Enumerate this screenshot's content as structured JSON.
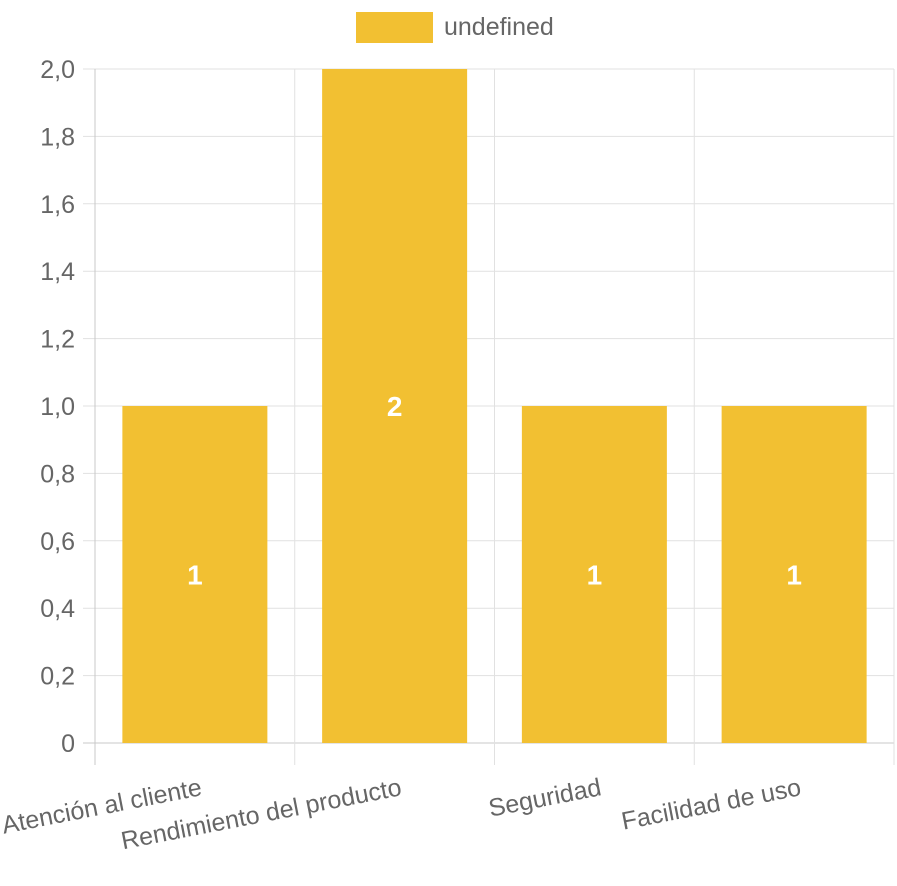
{
  "chart_data": {
    "type": "bar",
    "categories": [
      "Atención al cliente",
      "Rendimiento del producto",
      "Seguridad",
      "Facilidad de uso"
    ],
    "series": [
      {
        "name": "undefined",
        "values": [
          1,
          2,
          1,
          1
        ],
        "color": "#f2c032"
      }
    ],
    "data_labels": [
      "1",
      "2",
      "1",
      "1"
    ],
    "ylim": [
      0,
      2
    ],
    "y_ticks": [
      0,
      0.2,
      0.4,
      0.6,
      0.8,
      1.0,
      1.2,
      1.4,
      1.6,
      1.8,
      2.0
    ],
    "y_tick_labels": [
      "0",
      "0,2",
      "0,4",
      "0,6",
      "0,8",
      "1,0",
      "1,2",
      "1,4",
      "1,6",
      "1,8",
      "2,0"
    ],
    "title": "",
    "xlabel": "",
    "ylabel": "",
    "grid": true,
    "legend_position": "top-center",
    "colors": {
      "bar": "#f2c032",
      "grid": "#e1e1e1",
      "axis": "#c8c8c8",
      "tick_text": "#666666",
      "data_label": "#ffffff"
    }
  }
}
